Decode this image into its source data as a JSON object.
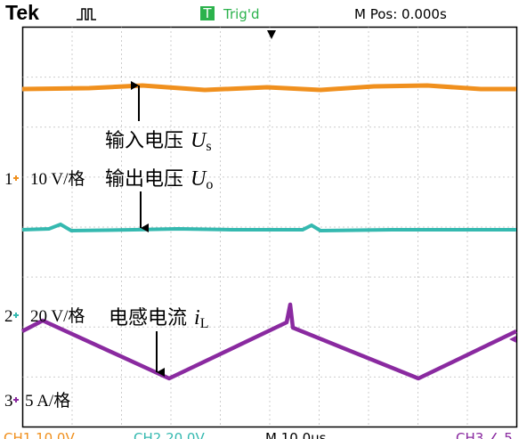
{
  "header": {
    "brand": "Tek",
    "trigger_icon": "T",
    "trigger_status": "Trig'd",
    "position": "M Pos: 0.000s"
  },
  "annotations": [
    {
      "text": "输入电压",
      "var": "U",
      "sub": "s"
    },
    {
      "text": "输出电压",
      "var": "U",
      "sub": "o"
    },
    {
      "text": "电感电流",
      "var": "i",
      "sub": "L"
    }
  ],
  "channels": [
    {
      "marker": "1",
      "scale": "10 V/格"
    },
    {
      "marker": "2",
      "scale": "20 V/格"
    },
    {
      "marker": "3",
      "scale": "5 A/格"
    }
  ],
  "footer": {
    "ch1": "CH1  10.0V",
    "ch2": "CH2  20.0V",
    "time": "M 10.0μs",
    "ch3": "CH3 ∠ 5"
  }
}
